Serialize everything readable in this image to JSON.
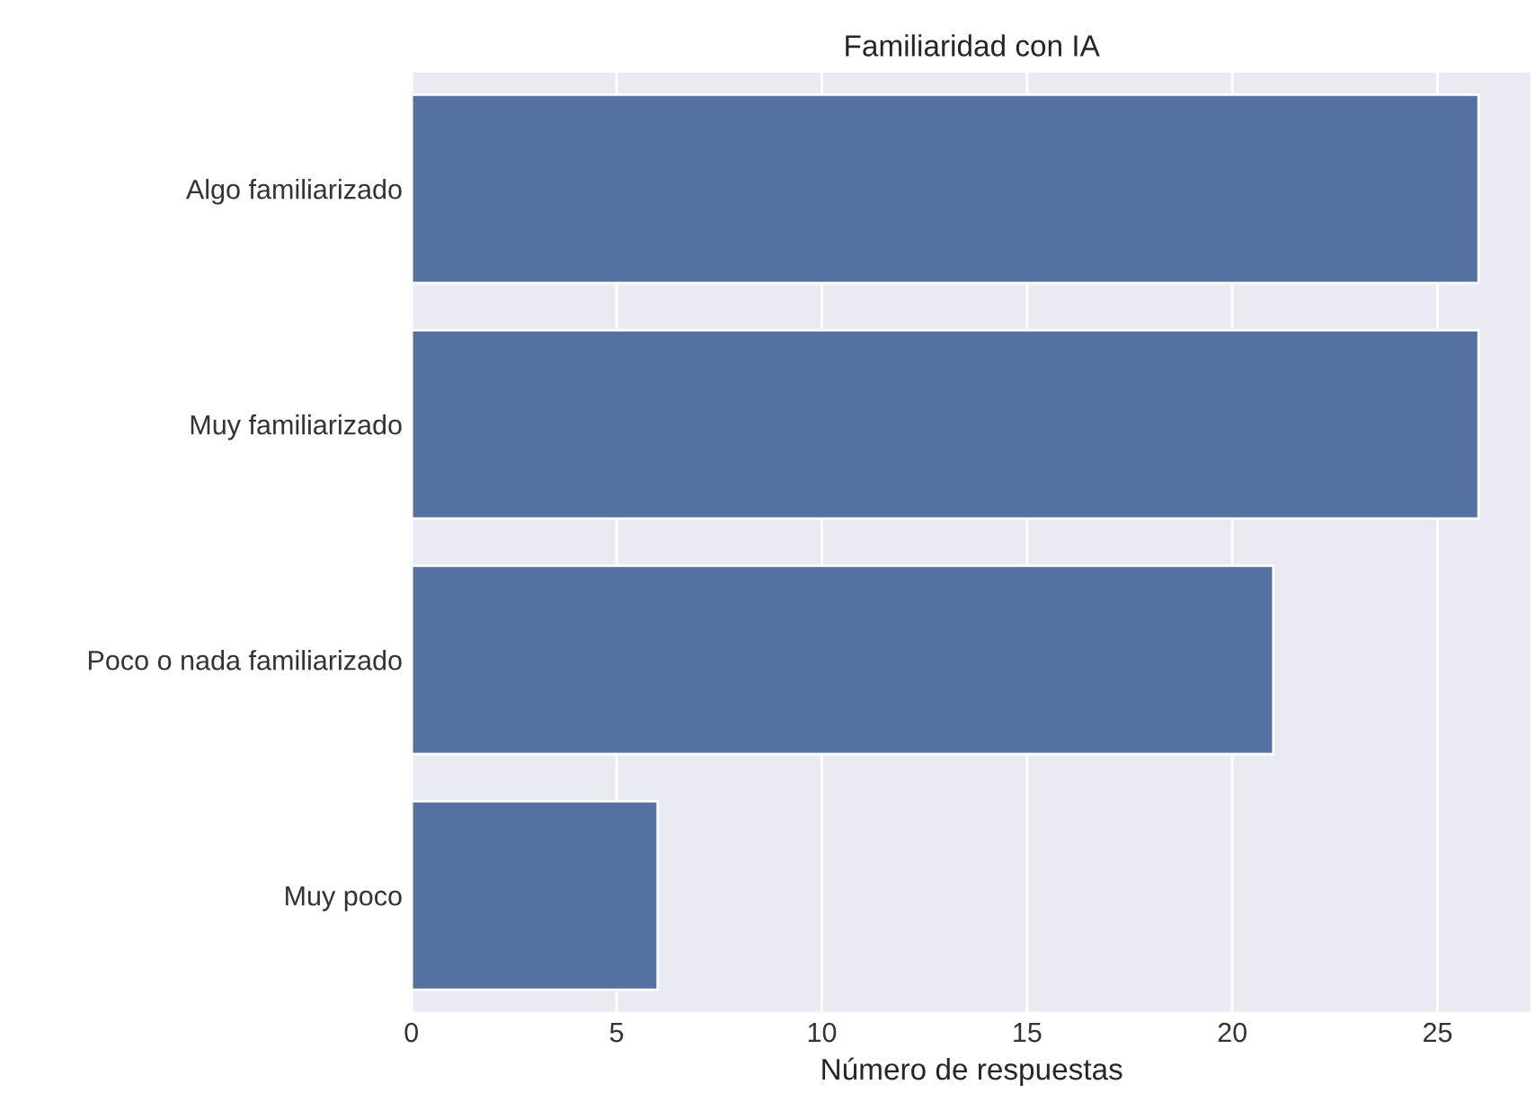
{
  "chart_data": {
    "type": "bar",
    "orientation": "horizontal",
    "title": "Familiaridad con IA",
    "xlabel": "Número de respuestas",
    "categories": [
      "Algo familiarizado",
      "Muy familiarizado",
      "Poco o nada familiarizado",
      "Muy poco"
    ],
    "values": [
      26,
      26,
      21,
      6
    ],
    "color": "#5471a2",
    "xlim": [
      0,
      27.3
    ],
    "xticks": [
      0,
      5,
      10,
      15,
      20,
      25
    ],
    "grid": "x"
  }
}
